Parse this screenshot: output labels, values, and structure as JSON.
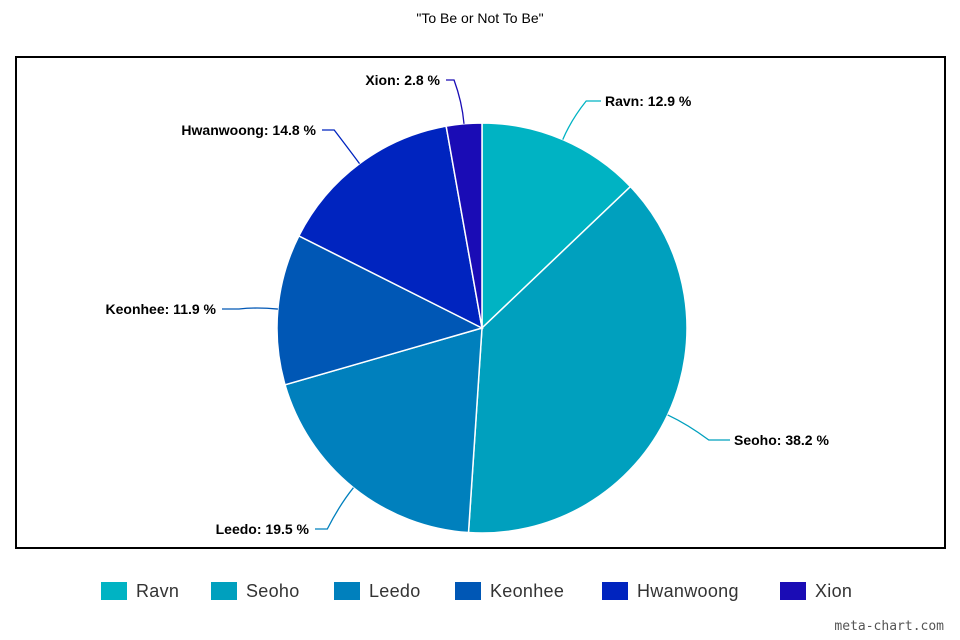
{
  "chart_data": {
    "type": "pie",
    "title": "\"To Be or Not To Be\"",
    "slices": [
      {
        "name": "Ravn",
        "value": 12.9,
        "label": "Ravn: 12.9 %",
        "color": "#00B3C3"
      },
      {
        "name": "Seoho",
        "value": 38.2,
        "label": "Seoho: 38.2 %",
        "color": "#00A0BE"
      },
      {
        "name": "Leedo",
        "value": 19.5,
        "label": "Leedo: 19.5 %",
        "color": "#0080BD"
      },
      {
        "name": "Keonhee",
        "value": 11.9,
        "label": "Keonhee: 11.9 %",
        "color": "#0057B5"
      },
      {
        "name": "Hwanwoong",
        "value": 14.8,
        "label": "Hwanwoong: 14.8 %",
        "color": "#0024BF"
      },
      {
        "name": "Xion",
        "value": 2.8,
        "label": "Xion: 2.8 %",
        "color": "#1A0CB5"
      }
    ],
    "legend_position": "bottom"
  },
  "watermark": "meta-chart.com"
}
